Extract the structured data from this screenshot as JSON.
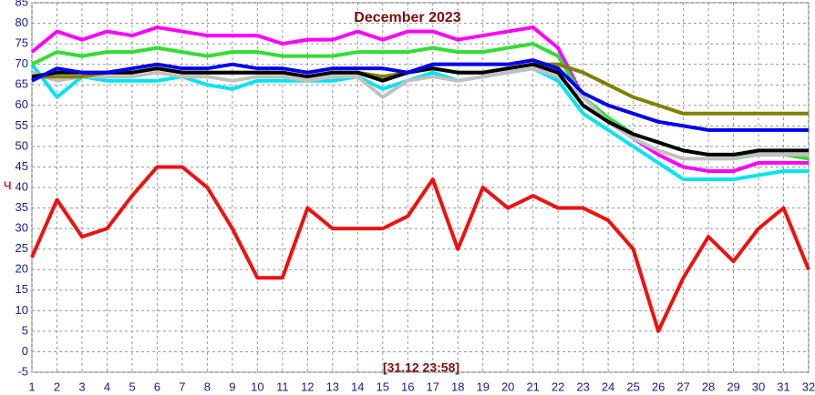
{
  "chart_data": {
    "type": "line",
    "title": "December 2023",
    "annotations": [
      "[31.12 23:58]",
      "Ч"
    ],
    "x": [
      1,
      2,
      3,
      4,
      5,
      6,
      7,
      8,
      9,
      10,
      11,
      12,
      13,
      14,
      15,
      16,
      17,
      18,
      19,
      20,
      21,
      22,
      23,
      24,
      25,
      26,
      27,
      28,
      29,
      30,
      31,
      32
    ],
    "xlim": [
      1,
      32
    ],
    "xticks": [
      1,
      2,
      3,
      4,
      5,
      6,
      7,
      8,
      9,
      10,
      11,
      12,
      13,
      14,
      15,
      16,
      17,
      18,
      19,
      20,
      21,
      22,
      23,
      24,
      25,
      26,
      27,
      28,
      29,
      30,
      31,
      32
    ],
    "ylim": [
      -5,
      85
    ],
    "yticks": [
      -5,
      0,
      5,
      10,
      15,
      20,
      25,
      30,
      35,
      40,
      45,
      50,
      55,
      60,
      65,
      70,
      75,
      80,
      85
    ],
    "grid": true,
    "series": [
      {
        "color": "#ff00ff",
        "values": [
          73,
          78,
          76,
          78,
          77,
          79,
          78,
          77,
          77,
          77,
          75,
          76,
          76,
          78,
          76,
          78,
          78,
          76,
          77,
          78,
          79,
          74,
          62,
          56,
          52,
          48,
          45,
          44,
          44,
          46,
          46,
          46
        ]
      },
      {
        "color": "#00e5ee",
        "values": [
          70,
          62,
          67,
          66,
          66,
          66,
          67,
          65,
          64,
          66,
          66,
          66,
          66,
          67,
          64,
          66,
          68,
          66,
          67,
          68,
          69,
          66,
          58,
          54,
          50,
          46,
          42,
          42,
          42,
          43,
          44,
          44
        ]
      },
      {
        "color": "#33dd33",
        "values": [
          70,
          73,
          72,
          73,
          73,
          74,
          73,
          72,
          73,
          73,
          72,
          72,
          72,
          73,
          73,
          73,
          74,
          73,
          73,
          74,
          75,
          72,
          62,
          57,
          53,
          51,
          49,
          48,
          48,
          48,
          48,
          47
        ]
      },
      {
        "color": "#c0c0c0",
        "values": [
          68,
          66,
          67,
          67,
          67,
          68,
          67,
          67,
          66,
          67,
          67,
          66,
          67,
          67,
          62,
          66,
          67,
          66,
          67,
          68,
          69,
          67,
          62,
          56,
          52,
          49,
          47,
          47,
          47,
          48,
          48,
          48
        ]
      },
      {
        "color": "#808000",
        "values": [
          67,
          67,
          67,
          68,
          68,
          69,
          68,
          68,
          68,
          68,
          68,
          67,
          68,
          68,
          67,
          68,
          69,
          68,
          68,
          69,
          70,
          70,
          68,
          65,
          62,
          60,
          58,
          58,
          58,
          58,
          58,
          58
        ]
      },
      {
        "color": "#000000",
        "values": [
          67,
          68,
          68,
          68,
          68,
          69,
          68,
          68,
          68,
          68,
          68,
          67,
          68,
          68,
          66,
          68,
          69,
          68,
          68,
          69,
          70,
          68,
          60,
          56,
          53,
          51,
          49,
          48,
          48,
          49,
          49,
          49
        ]
      },
      {
        "color": "#0000ee",
        "values": [
          66,
          69,
          68,
          68,
          69,
          70,
          69,
          69,
          70,
          69,
          69,
          68,
          69,
          69,
          69,
          68,
          70,
          70,
          70,
          70,
          71,
          69,
          63,
          60,
          58,
          56,
          55,
          54,
          54,
          54,
          54,
          54
        ]
      },
      {
        "color": "#ee1111",
        "values": [
          23,
          37,
          28,
          30,
          38,
          45,
          45,
          40,
          30,
          18,
          18,
          35,
          30,
          30,
          30,
          33,
          42,
          25,
          40,
          35,
          38,
          35,
          35,
          32,
          25,
          5,
          18,
          28,
          22,
          30,
          35,
          20
        ]
      }
    ]
  }
}
